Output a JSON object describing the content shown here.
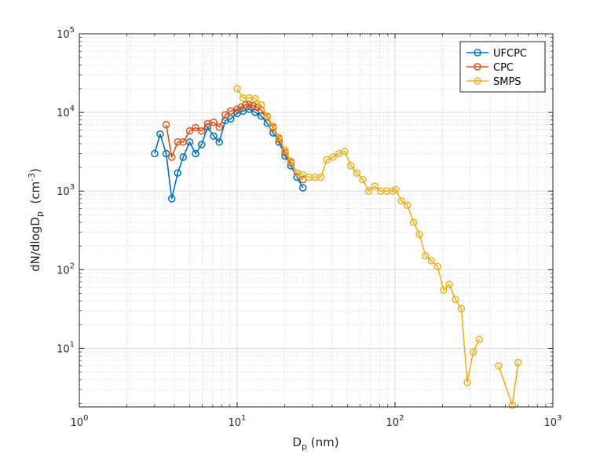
{
  "chart_data": {
    "type": "line",
    "xscale": "log",
    "yscale": "log",
    "xlim": [
      1,
      1000
    ],
    "ylim": [
      1.8,
      100000
    ],
    "grid": true,
    "minor_grid": true,
    "legend_position": "top-right",
    "xlabel": {
      "main": "D",
      "sub": "p",
      "tail": " (nm)"
    },
    "ylabel": {
      "main": "dN/dlogD",
      "sub": "p",
      "mid": "  (cm",
      "sup": "-3",
      "tail": ")"
    },
    "x_ticks": [
      {
        "value": 1,
        "base": "10",
        "exp": "0"
      },
      {
        "value": 10,
        "base": "10",
        "exp": "1"
      },
      {
        "value": 100,
        "base": "10",
        "exp": "2"
      },
      {
        "value": 1000,
        "base": "10",
        "exp": "3"
      }
    ],
    "y_ticks": [
      {
        "value": 10,
        "base": "10",
        "exp": "1"
      },
      {
        "value": 100,
        "base": "10",
        "exp": "2"
      },
      {
        "value": 1000,
        "base": "10",
        "exp": "3"
      },
      {
        "value": 10000,
        "base": "10",
        "exp": "4"
      },
      {
        "value": 100000,
        "base": "10",
        "exp": "5"
      }
    ],
    "series": [
      {
        "name": "UFCPC",
        "color": "#0072BD",
        "x": [
          3.0,
          3.25,
          3.55,
          3.85,
          4.2,
          4.55,
          5.0,
          5.45,
          5.95,
          6.5,
          7.1,
          7.7,
          8.4,
          9.1,
          10.0,
          10.9,
          11.9,
          13.0,
          14.2,
          15.5,
          16.9,
          18.4,
          20.1,
          21.9,
          23.9,
          26.1
        ],
        "y": [
          3000,
          5300,
          3000,
          800,
          1700,
          2700,
          4200,
          3000,
          3900,
          6500,
          5000,
          4200,
          7900,
          8300,
          9700,
          10400,
          11000,
          10000,
          9000,
          7300,
          5500,
          4200,
          2800,
          2100,
          1500,
          1100
        ]
      },
      {
        "name": "CPC",
        "color": "#D95319",
        "x": [
          3.55,
          3.85,
          4.2,
          4.55,
          5.0,
          5.45,
          5.95,
          6.5,
          7.1,
          7.7,
          8.4,
          9.1,
          10.0,
          10.6,
          11.3,
          11.9,
          12.6,
          13.4,
          14.2,
          15.5,
          16.9,
          18.4,
          20.1,
          21.9,
          23.9,
          26.1
        ],
        "y": [
          7000,
          2700,
          4200,
          4200,
          5800,
          6400,
          5800,
          7200,
          7500,
          6500,
          9300,
          10400,
          11000,
          11700,
          12500,
          12500,
          12200,
          11600,
          10700,
          8800,
          6400,
          4600,
          3100,
          2300,
          1700,
          1400
        ]
      },
      {
        "name": "SMPS",
        "color": "#EDB120",
        "x": [
          10.0,
          10.9,
          11.9,
          13.0,
          14.2,
          15.5,
          16.9,
          18.4,
          20.1,
          21.9,
          23.9,
          26.1,
          28.5,
          31.1,
          33.9,
          37.0,
          40.4,
          44.1,
          48.1,
          52.5,
          57.3,
          62.5,
          68.2,
          74.4,
          81.2,
          88.6,
          96.7,
          101.0,
          110.0,
          120.0,
          131.0,
          143.0,
          156.0,
          170.0,
          186.0,
          203.0,
          221.0,
          241.0,
          263.0,
          287.0,
          313.0,
          342.0,
          373.0,
          453.0,
          553.0,
          603.0
        ],
        "y": [
          20000,
          15200,
          15300,
          15000,
          12500,
          9000,
          6700,
          4800,
          3300,
          2400,
          1700,
          1600,
          1500,
          1500,
          1500,
          2500,
          2700,
          3000,
          3200,
          2100,
          1700,
          1400,
          1000,
          1150,
          1000,
          1000,
          1000,
          1050,
          750,
          660,
          400,
          280,
          150,
          130,
          110,
          55,
          65,
          42,
          32,
          3.7,
          9,
          13,
          null,
          6,
          1.9,
          6.6
        ]
      }
    ]
  }
}
